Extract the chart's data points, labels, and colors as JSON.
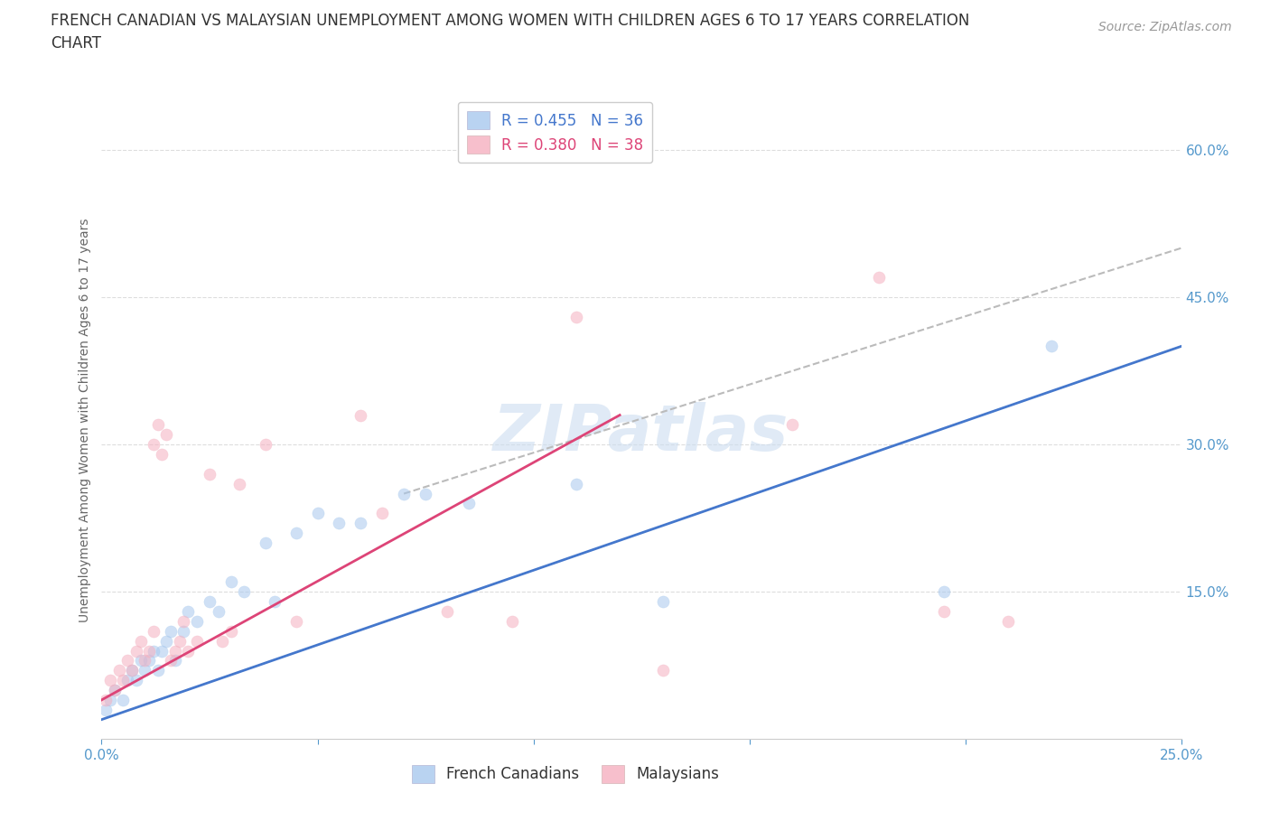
{
  "title_line1": "FRENCH CANADIAN VS MALAYSIAN UNEMPLOYMENT AMONG WOMEN WITH CHILDREN AGES 6 TO 17 YEARS CORRELATION",
  "title_line2": "CHART",
  "source_text": "Source: ZipAtlas.com",
  "ylabel": "Unemployment Among Women with Children Ages 6 to 17 years",
  "xlim": [
    0.0,
    0.25
  ],
  "ylim": [
    0.0,
    0.65
  ],
  "x_ticks": [
    0.0,
    0.05,
    0.1,
    0.15,
    0.2,
    0.25
  ],
  "x_tick_labels": [
    "0.0%",
    "",
    "",
    "",
    "",
    "25.0%"
  ],
  "y_ticks": [
    0.15,
    0.3,
    0.45,
    0.6
  ],
  "y_tick_labels": [
    "15.0%",
    "30.0%",
    "45.0%",
    "60.0%"
  ],
  "legend_blue_r": "R = 0.455",
  "legend_blue_n": "N = 36",
  "legend_pink_r": "R = 0.380",
  "legend_pink_n": "N = 38",
  "blue_color": "#a8c8ee",
  "pink_color": "#f5b0c0",
  "blue_line_color": "#4477cc",
  "pink_line_color": "#dd4477",
  "dashed_line_color": "#bbbbbb",
  "watermark_color": "#ccddf0",
  "grid_color": "#dddddd",
  "background_color": "#ffffff",
  "title_fontsize": 12,
  "axis_label_fontsize": 10,
  "tick_fontsize": 11,
  "legend_fontsize": 12,
  "source_fontsize": 10,
  "marker_size": 90,
  "marker_alpha": 0.55,
  "french_canadian_x": [
    0.001,
    0.002,
    0.003,
    0.005,
    0.006,
    0.007,
    0.008,
    0.009,
    0.01,
    0.011,
    0.012,
    0.013,
    0.014,
    0.015,
    0.016,
    0.017,
    0.019,
    0.02,
    0.022,
    0.025,
    0.027,
    0.03,
    0.033,
    0.038,
    0.04,
    0.045,
    0.05,
    0.055,
    0.06,
    0.07,
    0.075,
    0.085,
    0.11,
    0.13,
    0.195,
    0.22
  ],
  "french_canadian_y": [
    0.03,
    0.04,
    0.05,
    0.04,
    0.06,
    0.07,
    0.06,
    0.08,
    0.07,
    0.08,
    0.09,
    0.07,
    0.09,
    0.1,
    0.11,
    0.08,
    0.11,
    0.13,
    0.12,
    0.14,
    0.13,
    0.16,
    0.15,
    0.2,
    0.14,
    0.21,
    0.23,
    0.22,
    0.22,
    0.25,
    0.25,
    0.24,
    0.26,
    0.14,
    0.15,
    0.4
  ],
  "malaysian_x": [
    0.001,
    0.002,
    0.003,
    0.004,
    0.005,
    0.006,
    0.007,
    0.008,
    0.009,
    0.01,
    0.011,
    0.012,
    0.012,
    0.013,
    0.014,
    0.015,
    0.016,
    0.017,
    0.018,
    0.019,
    0.02,
    0.022,
    0.025,
    0.028,
    0.03,
    0.032,
    0.038,
    0.045,
    0.06,
    0.065,
    0.08,
    0.095,
    0.11,
    0.13,
    0.16,
    0.18,
    0.195,
    0.21
  ],
  "malaysian_y": [
    0.04,
    0.06,
    0.05,
    0.07,
    0.06,
    0.08,
    0.07,
    0.09,
    0.1,
    0.08,
    0.09,
    0.11,
    0.3,
    0.32,
    0.29,
    0.31,
    0.08,
    0.09,
    0.1,
    0.12,
    0.09,
    0.1,
    0.27,
    0.1,
    0.11,
    0.26,
    0.3,
    0.12,
    0.33,
    0.23,
    0.13,
    0.12,
    0.43,
    0.07,
    0.32,
    0.47,
    0.13,
    0.12
  ],
  "blue_line_x": [
    0.0,
    0.25
  ],
  "blue_line_y": [
    0.02,
    0.4
  ],
  "pink_line_x": [
    0.0,
    0.12
  ],
  "pink_line_y": [
    0.04,
    0.33
  ],
  "dashed_line_x": [
    0.07,
    0.25
  ],
  "dashed_line_y": [
    0.25,
    0.5
  ]
}
